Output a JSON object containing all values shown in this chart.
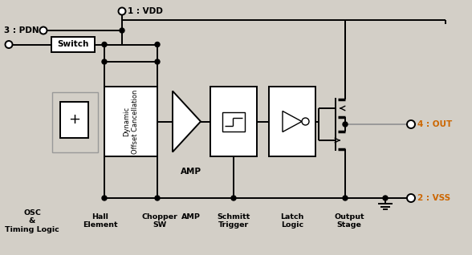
{
  "bg_color": "#d3cfc7",
  "fg_color": "#000000",
  "white": "#ffffff",
  "gray_line": "#999999",
  "orange_text": "#cc6600",
  "title_vdd": "1 : VDD",
  "label_pdn": "3 : PDN",
  "label_out": "4 : OUT",
  "label_vss": "2 : VSS",
  "label_switch": "Switch",
  "label_dynamic": "Dynamic\nOffset Cancellation",
  "label_amp": "AMP",
  "label_schmitt": "Schmitt\nTrigger",
  "label_latch": "Latch\nLogic",
  "label_output": "Output\nStage",
  "label_osc": "OSC\n&\nTiming Logic",
  "label_hall": "Hall\nElement",
  "label_chopper": "Chopper\nSW",
  "fig_width": 5.88,
  "fig_height": 3.18,
  "dpi": 100
}
